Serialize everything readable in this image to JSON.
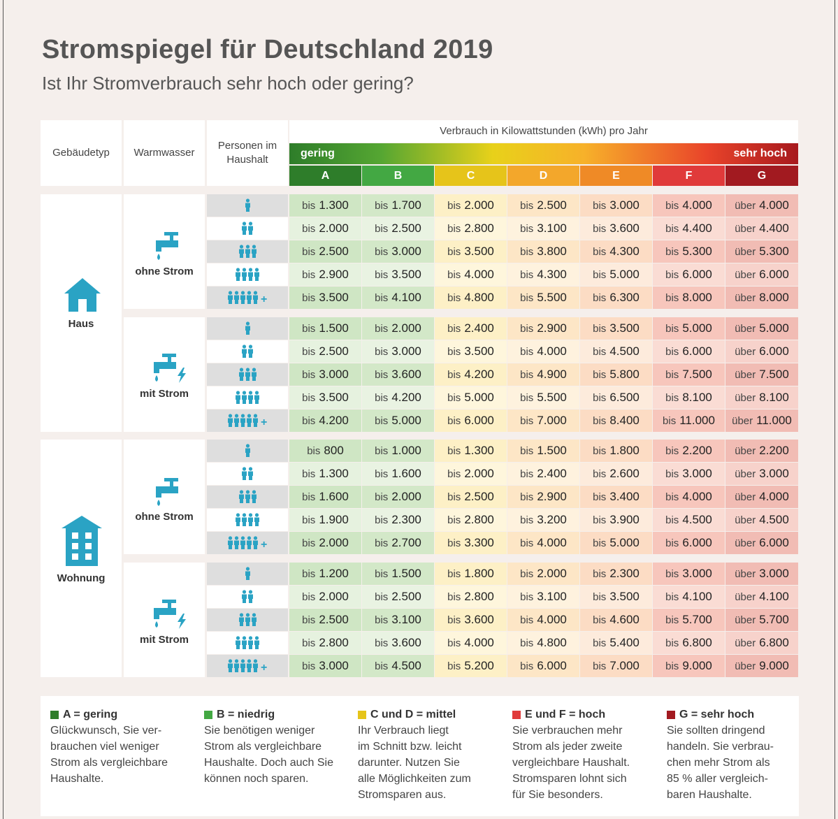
{
  "title": "Stromspiegel für Deutschland 2019",
  "subtitle": "Ist Ihr Stromverbrauch sehr hoch oder gering?",
  "headers": {
    "building": "Gebäudetyp",
    "water": "Warmwasser",
    "persons_line1": "Personen im",
    "persons_line2": "Haushalt",
    "consumption": "Verbrauch in Kilowattstunden (kWh) pro Jahr",
    "low": "gering",
    "high": "sehr hoch"
  },
  "colors": {
    "A_head": "#2e7d2a",
    "B_head": "#43a843",
    "C_head": "#e6c41a",
    "D_head": "#f3a72b",
    "E_head": "#ef8a26",
    "F_head": "#e03a3a",
    "G_head": "#a21a20",
    "A_dark": "#cfe6c4",
    "A_light": "#e6f2df",
    "B_dark": "#d3e8c8",
    "B_light": "#e9f3e2",
    "C_dark": "#fdf0c6",
    "C_light": "#fef6dc",
    "D_dark": "#fde6c6",
    "D_light": "#fef2de",
    "E_dark": "#fcdcc4",
    "E_light": "#fdebdc",
    "F_dark": "#f7c6bc",
    "F_light": "#fadcd4",
    "G_dark": "#f1bcb4",
    "G_light": "#f7d2cb",
    "icon": "#2aa3c4"
  },
  "chart_data": {
    "type": "table",
    "title": "Stromspiegel für Deutschland 2019",
    "unit": "kWh pro Jahr",
    "classes": [
      "A",
      "B",
      "C",
      "D",
      "E",
      "F",
      "G"
    ],
    "household_sizes": [
      1,
      2,
      3,
      4,
      5
    ],
    "groups": [
      {
        "building": "Haus",
        "water": "ohne Strom",
        "rows": [
          {
            "persons": 1,
            "prefix": [
              "bis",
              "bis",
              "bis",
              "bis",
              "bis",
              "bis",
              "über"
            ],
            "values": [
              "1.300",
              "1.700",
              "2.000",
              "2.500",
              "3.000",
              "4.000",
              "4.000"
            ]
          },
          {
            "persons": 2,
            "prefix": [
              "bis",
              "bis",
              "bis",
              "bis",
              "bis",
              "bis",
              "über"
            ],
            "values": [
              "2.000",
              "2.500",
              "2.800",
              "3.100",
              "3.600",
              "4.400",
              "4.400"
            ]
          },
          {
            "persons": 3,
            "prefix": [
              "bis",
              "bis",
              "bis",
              "bis",
              "bis",
              "bis",
              "über"
            ],
            "values": [
              "2.500",
              "3.000",
              "3.500",
              "3.800",
              "4.300",
              "5.300",
              "5.300"
            ]
          },
          {
            "persons": 4,
            "prefix": [
              "bis",
              "bis",
              "bis",
              "bis",
              "bis",
              "bis",
              "über"
            ],
            "values": [
              "2.900",
              "3.500",
              "4.000",
              "4.300",
              "5.000",
              "6.000",
              "6.000"
            ]
          },
          {
            "persons": 5,
            "prefix": [
              "bis",
              "bis",
              "bis",
              "bis",
              "bis",
              "bis",
              "über"
            ],
            "values": [
              "3.500",
              "4.100",
              "4.800",
              "5.500",
              "6.300",
              "8.000",
              "8.000"
            ]
          }
        ]
      },
      {
        "building": "Haus",
        "water": "mit Strom",
        "rows": [
          {
            "persons": 1,
            "prefix": [
              "bis",
              "bis",
              "bis",
              "bis",
              "bis",
              "bis",
              "über"
            ],
            "values": [
              "1.500",
              "2.000",
              "2.400",
              "2.900",
              "3.500",
              "5.000",
              "5.000"
            ]
          },
          {
            "persons": 2,
            "prefix": [
              "bis",
              "bis",
              "bis",
              "bis",
              "bis",
              "bis",
              "über"
            ],
            "values": [
              "2.500",
              "3.000",
              "3.500",
              "4.000",
              "4.500",
              "6.000",
              "6.000"
            ]
          },
          {
            "persons": 3,
            "prefix": [
              "bis",
              "bis",
              "bis",
              "bis",
              "bis",
              "bis",
              "über"
            ],
            "values": [
              "3.000",
              "3.600",
              "4.200",
              "4.900",
              "5.800",
              "7.500",
              "7.500"
            ]
          },
          {
            "persons": 4,
            "prefix": [
              "bis",
              "bis",
              "bis",
              "bis",
              "bis",
              "bis",
              "über"
            ],
            "values": [
              "3.500",
              "4.200",
              "5.000",
              "5.500",
              "6.500",
              "8.100",
              "8.100"
            ]
          },
          {
            "persons": 5,
            "prefix": [
              "bis",
              "bis",
              "bis",
              "bis",
              "bis",
              "bis",
              "über"
            ],
            "values": [
              "4.200",
              "5.000",
              "6.000",
              "7.000",
              "8.400",
              "11.000",
              "11.000"
            ]
          }
        ]
      },
      {
        "building": "Wohnung",
        "water": "ohne Strom",
        "rows": [
          {
            "persons": 1,
            "prefix": [
              "bis",
              "bis",
              "bis",
              "bis",
              "bis",
              "bis",
              "über"
            ],
            "values": [
              "800",
              "1.000",
              "1.300",
              "1.500",
              "1.800",
              "2.200",
              "2.200"
            ]
          },
          {
            "persons": 2,
            "prefix": [
              "bis",
              "bis",
              "bis",
              "bis",
              "bis",
              "bis",
              "über"
            ],
            "values": [
              "1.300",
              "1.600",
              "2.000",
              "2.400",
              "2.600",
              "3.000",
              "3.000"
            ]
          },
          {
            "persons": 3,
            "prefix": [
              "bis",
              "bis",
              "bis",
              "bis",
              "bis",
              "bis",
              "über"
            ],
            "values": [
              "1.600",
              "2.000",
              "2.500",
              "2.900",
              "3.400",
              "4.000",
              "4.000"
            ]
          },
          {
            "persons": 4,
            "prefix": [
              "bis",
              "bis",
              "bis",
              "bis",
              "bis",
              "bis",
              "über"
            ],
            "values": [
              "1.900",
              "2.300",
              "2.800",
              "3.200",
              "3.900",
              "4.500",
              "4.500"
            ]
          },
          {
            "persons": 5,
            "prefix": [
              "bis",
              "bis",
              "bis",
              "bis",
              "bis",
              "bis",
              "über"
            ],
            "values": [
              "2.000",
              "2.700",
              "3.300",
              "4.000",
              "5.000",
              "6.000",
              "6.000"
            ]
          }
        ]
      },
      {
        "building": "Wohnung",
        "water": "mit Strom",
        "rows": [
          {
            "persons": 1,
            "prefix": [
              "bis",
              "bis",
              "bis",
              "bis",
              "bis",
              "bis",
              "über"
            ],
            "values": [
              "1.200",
              "1.500",
              "1.800",
              "2.000",
              "2.300",
              "3.000",
              "3.000"
            ]
          },
          {
            "persons": 2,
            "prefix": [
              "bis",
              "bis",
              "bis",
              "bis",
              "bis",
              "bis",
              "über"
            ],
            "values": [
              "2.000",
              "2.500",
              "2.800",
              "3.100",
              "3.500",
              "4.100",
              "4.100"
            ]
          },
          {
            "persons": 3,
            "prefix": [
              "bis",
              "bis",
              "bis",
              "bis",
              "bis",
              "bis",
              "über"
            ],
            "values": [
              "2.500",
              "3.100",
              "3.600",
              "4.000",
              "4.600",
              "5.700",
              "5.700"
            ]
          },
          {
            "persons": 4,
            "prefix": [
              "bis",
              "bis",
              "bis",
              "bis",
              "bis",
              "bis",
              "über"
            ],
            "values": [
              "2.800",
              "3.600",
              "4.000",
              "4.800",
              "5.400",
              "6.800",
              "6.800"
            ]
          },
          {
            "persons": 5,
            "prefix": [
              "bis",
              "bis",
              "bis",
              "bis",
              "bis",
              "bis",
              "über"
            ],
            "values": [
              "3.000",
              "4.500",
              "5.200",
              "6.000",
              "7.000",
              "9.000",
              "9.000"
            ]
          }
        ]
      }
    ]
  },
  "legend": [
    {
      "label": "A = gering",
      "color": "#2e7d2a",
      "lines": [
        "Glückwunsch, Sie ver-",
        "brauchen viel weniger",
        "Strom als vergleichbare",
        "Haushalte."
      ]
    },
    {
      "label": "B = niedrig",
      "color": "#43a843",
      "lines": [
        "Sie benötigen weniger",
        "Strom als vergleichbare",
        "Haushalte. Doch auch Sie",
        "können noch sparen."
      ]
    },
    {
      "label": "C und D = mittel",
      "color": "#e6c41a",
      "lines": [
        "Ihr Verbrauch liegt",
        "im Schnitt bzw. leicht",
        "darunter. Nutzen Sie",
        "alle Möglichkeiten zum",
        "Stromsparen aus."
      ]
    },
    {
      "label": "E und F = hoch",
      "color": "#e03a3a",
      "lines": [
        "Sie verbrauchen mehr",
        "Strom als jeder zweite",
        "vergleichbare Haushalt.",
        "Stromsparen lohnt sich",
        "für Sie besonders."
      ]
    },
    {
      "label": "G = sehr hoch",
      "color": "#a21a20",
      "lines": [
        "Sie sollten dringend",
        "handeln. Sie verbrau-",
        "chen mehr Strom als",
        "85 % aller vergleich-",
        "baren Haushalte."
      ]
    }
  ]
}
